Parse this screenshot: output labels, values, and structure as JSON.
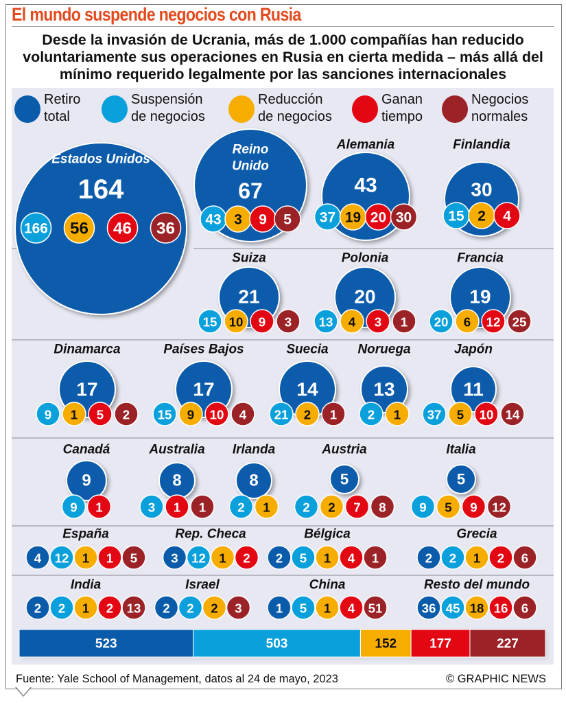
{
  "header": {
    "title": "El mundo suspende negocios con Rusia",
    "subtitle": "Desde la invasión de Ucrania, más de 1.000 compañías han reducido voluntariamente sus operaciones en Rusia en cierta medida – más allá del mínimo requerido legalmente por las sanciones internacionales"
  },
  "legend": [
    {
      "key": "retiro",
      "label": "Retiro\ntotal",
      "color": "#0a5cab"
    },
    {
      "key": "suspension",
      "label": "Suspensión\nde negocios",
      "color": "#0aa0dc"
    },
    {
      "key": "reduccion",
      "label": "Reducción\nde negocios",
      "color": "#f7ad00"
    },
    {
      "key": "ganan",
      "label": "Ganan\ntiempo",
      "color": "#e30613"
    },
    {
      "key": "normales",
      "label": "Negocios\nnormales",
      "color": "#9b2226"
    }
  ],
  "footer": {
    "source": "Fuente: Yale School of Management, datos al 24 de mayo, 2023",
    "credit": "© GRAPHIC NEWS"
  },
  "chart_data": {
    "type": "bubble-grid",
    "title": "El mundo suspende negocios con Rusia",
    "categories": [
      "Retiro total",
      "Suspensión de negocios",
      "Reducción de negocios",
      "Ganan tiempo",
      "Negocios normales"
    ],
    "countries": [
      {
        "name": "Estados Unidos",
        "retiro": 164,
        "suspension": 166,
        "reduccion": 56,
        "ganan": 46,
        "normales": 36
      },
      {
        "name": "Reino Unido",
        "retiro": 67,
        "suspension": 43,
        "reduccion": 3,
        "ganan": 9,
        "normales": 5
      },
      {
        "name": "Alemania",
        "retiro": 43,
        "suspension": 37,
        "reduccion": 19,
        "ganan": 20,
        "normales": 30
      },
      {
        "name": "Finlandia",
        "retiro": 30,
        "suspension": 15,
        "reduccion": 2,
        "ganan": 4,
        "normales": null
      },
      {
        "name": "Suiza",
        "retiro": 21,
        "suspension": 15,
        "reduccion": 10,
        "ganan": 9,
        "normales": 3
      },
      {
        "name": "Polonia",
        "retiro": 20,
        "suspension": 13,
        "reduccion": 4,
        "ganan": 3,
        "normales": 1
      },
      {
        "name": "Francia",
        "retiro": 19,
        "suspension": 20,
        "reduccion": 6,
        "ganan": 12,
        "normales": 25
      },
      {
        "name": "Dinamarca",
        "retiro": 17,
        "suspension": 9,
        "reduccion": 1,
        "ganan": 5,
        "normales": 2
      },
      {
        "name": "Países Bajos",
        "retiro": 17,
        "suspension": 15,
        "reduccion": 9,
        "ganan": 10,
        "normales": 4
      },
      {
        "name": "Suecia",
        "retiro": 14,
        "suspension": 21,
        "reduccion": 2,
        "ganan": null,
        "normales": 1
      },
      {
        "name": "Noruega",
        "retiro": 13,
        "suspension": 2,
        "reduccion": 1,
        "ganan": null,
        "normales": null
      },
      {
        "name": "Japón",
        "retiro": 11,
        "suspension": 37,
        "reduccion": 5,
        "ganan": 10,
        "normales": 14
      },
      {
        "name": "Canadá",
        "retiro": 9,
        "suspension": 9,
        "reduccion": null,
        "ganan": 1,
        "normales": null
      },
      {
        "name": "Australia",
        "retiro": 8,
        "suspension": 3,
        "reduccion": null,
        "ganan": 1,
        "normales": 1
      },
      {
        "name": "Irlanda",
        "retiro": 8,
        "suspension": 2,
        "reduccion": 1,
        "ganan": null,
        "normales": null
      },
      {
        "name": "Austria",
        "retiro": 5,
        "suspension": 2,
        "reduccion": 2,
        "ganan": 7,
        "normales": 8
      },
      {
        "name": "Italia",
        "retiro": 5,
        "suspension": 9,
        "reduccion": 5,
        "ganan": 9,
        "normales": 12
      },
      {
        "name": "España",
        "retiro": 4,
        "suspension": 12,
        "reduccion": 1,
        "ganan": 1,
        "normales": 5
      },
      {
        "name": "Rep. Checa",
        "retiro": 3,
        "suspension": 12,
        "reduccion": 1,
        "ganan": 2,
        "normales": null
      },
      {
        "name": "Bélgica",
        "retiro": 2,
        "suspension": 5,
        "reduccion": 1,
        "ganan": 4,
        "normales": 1
      },
      {
        "name": "Grecia",
        "retiro": 2,
        "suspension": 2,
        "reduccion": 1,
        "ganan": 2,
        "normales": 6
      },
      {
        "name": "India",
        "retiro": 2,
        "suspension": 2,
        "reduccion": 1,
        "ganan": 2,
        "normales": 13
      },
      {
        "name": "Israel",
        "retiro": 2,
        "suspension": 2,
        "reduccion": 2,
        "ganan": null,
        "normales": 3
      },
      {
        "name": "China",
        "retiro": 1,
        "suspension": 5,
        "reduccion": 1,
        "ganan": 4,
        "normales": 51
      },
      {
        "name": "Resto del mundo",
        "retiro": 36,
        "suspension": 45,
        "reduccion": 18,
        "ganan": 16,
        "normales": 6
      }
    ],
    "totals": [
      {
        "key": "retiro",
        "value": 523
      },
      {
        "key": "suspension",
        "value": 503
      },
      {
        "key": "reduccion",
        "value": 152
      },
      {
        "key": "ganan",
        "value": 177
      },
      {
        "key": "normales",
        "value": 227
      }
    ]
  }
}
